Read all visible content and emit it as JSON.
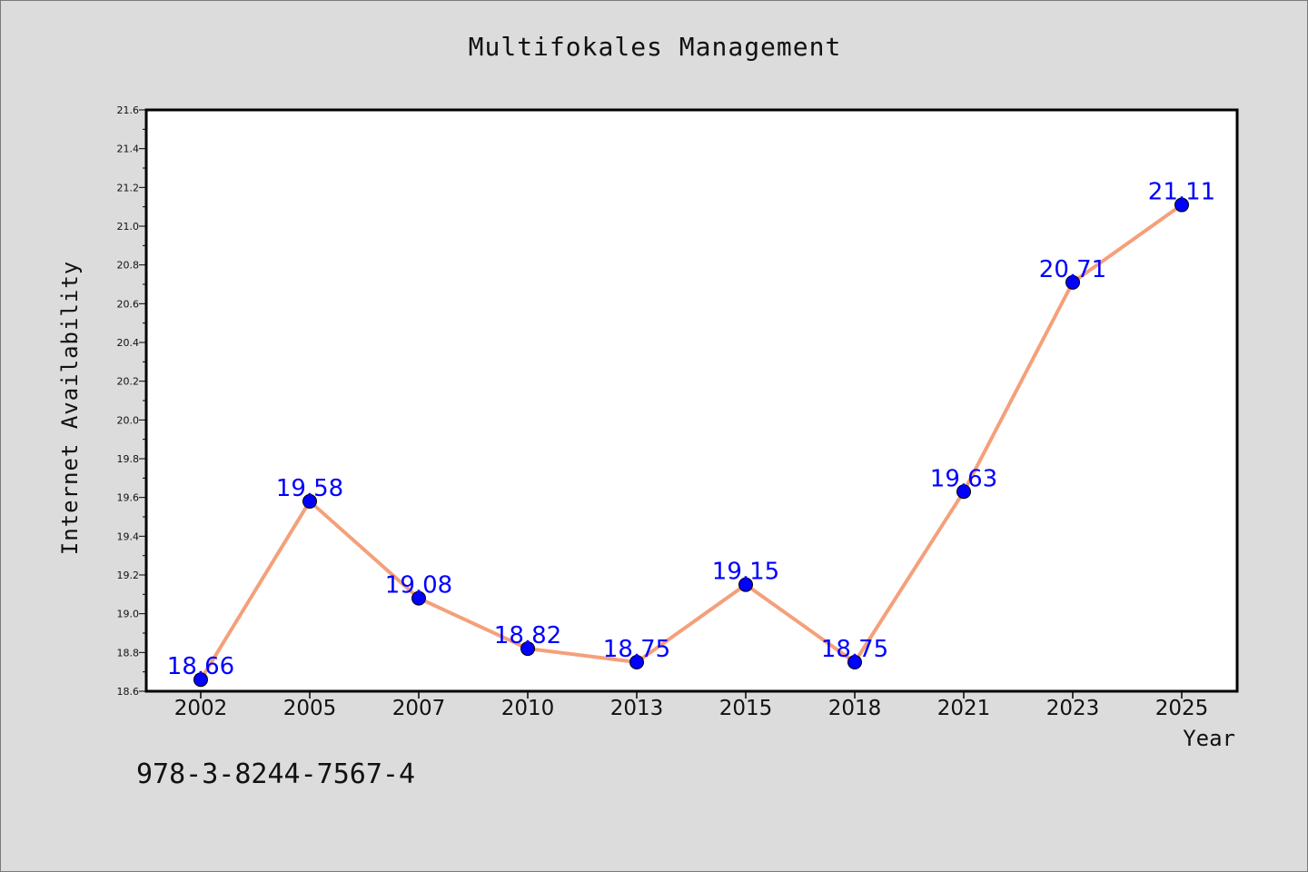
{
  "chart_data": {
    "type": "line",
    "title": "Multifokales Management",
    "xlabel": "Year",
    "ylabel": "Internet Availability",
    "categories": [
      "2002",
      "2005",
      "2007",
      "2010",
      "2013",
      "2015",
      "2018",
      "2021",
      "2023",
      "2025"
    ],
    "series": [
      {
        "values": [
          18.66,
          19.58,
          19.08,
          18.82,
          18.75,
          19.15,
          18.75,
          19.63,
          20.71,
          21.11
        ],
        "line_color": "#f4a07a",
        "marker_color": "#0000ff"
      }
    ],
    "data_labels": [
      "18.66",
      "19.58",
      "19.08",
      "18.82",
      "18.75",
      "19.15",
      "18.75",
      "19.63",
      "20.71",
      "21.11"
    ],
    "ylim": [
      18.6,
      21.6
    ],
    "yticks": [
      "18.6",
      "18.8",
      "19.0",
      "19.2",
      "19.4",
      "19.6",
      "19.8",
      "20.0",
      "20.2",
      "20.4",
      "20.6",
      "20.8",
      "21.0",
      "21.2",
      "21.4",
      "21.6"
    ],
    "grid": false,
    "legend": "none"
  },
  "footer": {
    "code": "978-3-8244-7567-4"
  }
}
